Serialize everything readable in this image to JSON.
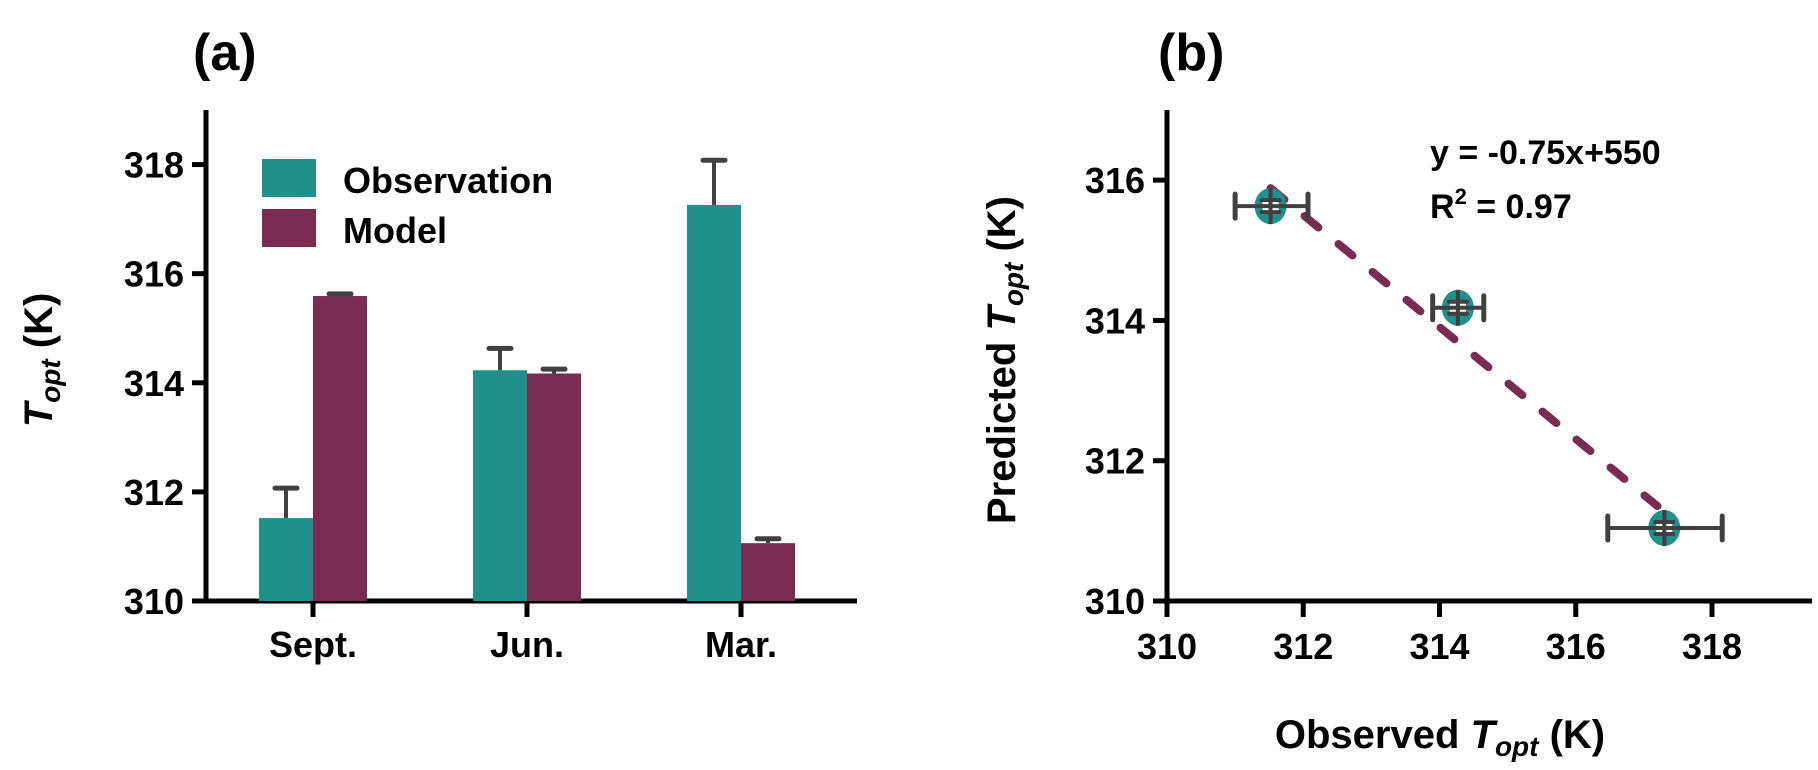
{
  "colors": {
    "observation": "#1f918a",
    "model": "#7a2b52",
    "error_bar": "#404040",
    "axis": "#000000"
  },
  "chart_data": [
    {
      "panel_label": "(a)",
      "type": "bar",
      "ylabel_main": "T",
      "ylabel_sub": "opt",
      "ylabel_unit": " (K)",
      "xlabel": "",
      "ylim": [
        310,
        319
      ],
      "yticks": [
        "310",
        "312",
        "314",
        "316",
        "318"
      ],
      "categories": [
        "Sept.",
        "Jun.",
        "Mar."
      ],
      "legend_position": "top-left",
      "series": [
        {
          "name": "Observation",
          "values": [
            311.52,
            314.23,
            317.26
          ],
          "error_upper": [
            312.07,
            314.63,
            318.08
          ]
        },
        {
          "name": "Model",
          "values": [
            315.59,
            314.17,
            311.06
          ],
          "error_upper": [
            315.63,
            314.25,
            311.14
          ]
        }
      ]
    },
    {
      "panel_label": "(b)",
      "type": "scatter",
      "xlabel_main": "Observed ",
      "xlabel_T": "T",
      "xlabel_sub": "opt",
      "xlabel_unit": " (K)",
      "ylabel_main": "Predicted ",
      "ylabel_T": "T",
      "ylabel_sub": "opt",
      "ylabel_unit": " (K)",
      "xlim": [
        310,
        319.5
      ],
      "ylim": [
        310,
        317
      ],
      "xticks": [
        "310",
        "312",
        "314",
        "316",
        "318"
      ],
      "yticks": [
        "310",
        "312",
        "314",
        "316"
      ],
      "points": [
        {
          "x": 311.52,
          "y": 315.63,
          "x_err": [
            311.0,
            312.07
          ],
          "y_err": [
            315.5,
            315.75
          ]
        },
        {
          "x": 314.27,
          "y": 314.18,
          "x_err": [
            313.9,
            314.65
          ],
          "y_err": [
            314.05,
            314.3
          ]
        },
        {
          "x": 317.3,
          "y": 311.04,
          "x_err": [
            316.47,
            318.15
          ],
          "y_err": [
            310.9,
            311.15
          ]
        }
      ],
      "fit_line": {
        "style": "dashed",
        "x_range": [
          311.52,
          317.2
        ]
      },
      "annotation_eq": "y = -0.75x+550",
      "annotation_r_prefix": "R",
      "annotation_r_sup": "2",
      "annotation_r_value": " = 0.97"
    }
  ]
}
